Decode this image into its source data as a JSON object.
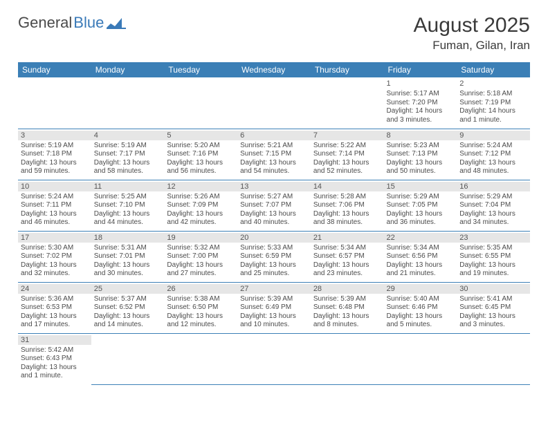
{
  "logo": {
    "part1": "General",
    "part2": "Blue"
  },
  "title": "August 2025",
  "location": "Fuman, Gilan, Iran",
  "colors": {
    "header_bg": "#3b7fb6",
    "header_text": "#ffffff",
    "daynum_bg": "#e6e6e6",
    "text": "#4a4a4a",
    "row_border": "#3b7fb6",
    "page_bg": "#ffffff"
  },
  "fonts": {
    "title_size": 30,
    "location_size": 17,
    "dayheader_size": 12,
    "cell_size": 10
  },
  "day_headers": [
    "Sunday",
    "Monday",
    "Tuesday",
    "Wednesday",
    "Thursday",
    "Friday",
    "Saturday"
  ],
  "weeks": [
    [
      null,
      null,
      null,
      null,
      null,
      {
        "n": "1",
        "sr": "Sunrise: 5:17 AM",
        "ss": "Sunset: 7:20 PM",
        "d1": "Daylight: 14 hours",
        "d2": "and 3 minutes."
      },
      {
        "n": "2",
        "sr": "Sunrise: 5:18 AM",
        "ss": "Sunset: 7:19 PM",
        "d1": "Daylight: 14 hours",
        "d2": "and 1 minute."
      }
    ],
    [
      {
        "n": "3",
        "sr": "Sunrise: 5:19 AM",
        "ss": "Sunset: 7:18 PM",
        "d1": "Daylight: 13 hours",
        "d2": "and 59 minutes."
      },
      {
        "n": "4",
        "sr": "Sunrise: 5:19 AM",
        "ss": "Sunset: 7:17 PM",
        "d1": "Daylight: 13 hours",
        "d2": "and 58 minutes."
      },
      {
        "n": "5",
        "sr": "Sunrise: 5:20 AM",
        "ss": "Sunset: 7:16 PM",
        "d1": "Daylight: 13 hours",
        "d2": "and 56 minutes."
      },
      {
        "n": "6",
        "sr": "Sunrise: 5:21 AM",
        "ss": "Sunset: 7:15 PM",
        "d1": "Daylight: 13 hours",
        "d2": "and 54 minutes."
      },
      {
        "n": "7",
        "sr": "Sunrise: 5:22 AM",
        "ss": "Sunset: 7:14 PM",
        "d1": "Daylight: 13 hours",
        "d2": "and 52 minutes."
      },
      {
        "n": "8",
        "sr": "Sunrise: 5:23 AM",
        "ss": "Sunset: 7:13 PM",
        "d1": "Daylight: 13 hours",
        "d2": "and 50 minutes."
      },
      {
        "n": "9",
        "sr": "Sunrise: 5:24 AM",
        "ss": "Sunset: 7:12 PM",
        "d1": "Daylight: 13 hours",
        "d2": "and 48 minutes."
      }
    ],
    [
      {
        "n": "10",
        "sr": "Sunrise: 5:24 AM",
        "ss": "Sunset: 7:11 PM",
        "d1": "Daylight: 13 hours",
        "d2": "and 46 minutes."
      },
      {
        "n": "11",
        "sr": "Sunrise: 5:25 AM",
        "ss": "Sunset: 7:10 PM",
        "d1": "Daylight: 13 hours",
        "d2": "and 44 minutes."
      },
      {
        "n": "12",
        "sr": "Sunrise: 5:26 AM",
        "ss": "Sunset: 7:09 PM",
        "d1": "Daylight: 13 hours",
        "d2": "and 42 minutes."
      },
      {
        "n": "13",
        "sr": "Sunrise: 5:27 AM",
        "ss": "Sunset: 7:07 PM",
        "d1": "Daylight: 13 hours",
        "d2": "and 40 minutes."
      },
      {
        "n": "14",
        "sr": "Sunrise: 5:28 AM",
        "ss": "Sunset: 7:06 PM",
        "d1": "Daylight: 13 hours",
        "d2": "and 38 minutes."
      },
      {
        "n": "15",
        "sr": "Sunrise: 5:29 AM",
        "ss": "Sunset: 7:05 PM",
        "d1": "Daylight: 13 hours",
        "d2": "and 36 minutes."
      },
      {
        "n": "16",
        "sr": "Sunrise: 5:29 AM",
        "ss": "Sunset: 7:04 PM",
        "d1": "Daylight: 13 hours",
        "d2": "and 34 minutes."
      }
    ],
    [
      {
        "n": "17",
        "sr": "Sunrise: 5:30 AM",
        "ss": "Sunset: 7:02 PM",
        "d1": "Daylight: 13 hours",
        "d2": "and 32 minutes."
      },
      {
        "n": "18",
        "sr": "Sunrise: 5:31 AM",
        "ss": "Sunset: 7:01 PM",
        "d1": "Daylight: 13 hours",
        "d2": "and 30 minutes."
      },
      {
        "n": "19",
        "sr": "Sunrise: 5:32 AM",
        "ss": "Sunset: 7:00 PM",
        "d1": "Daylight: 13 hours",
        "d2": "and 27 minutes."
      },
      {
        "n": "20",
        "sr": "Sunrise: 5:33 AM",
        "ss": "Sunset: 6:59 PM",
        "d1": "Daylight: 13 hours",
        "d2": "and 25 minutes."
      },
      {
        "n": "21",
        "sr": "Sunrise: 5:34 AM",
        "ss": "Sunset: 6:57 PM",
        "d1": "Daylight: 13 hours",
        "d2": "and 23 minutes."
      },
      {
        "n": "22",
        "sr": "Sunrise: 5:34 AM",
        "ss": "Sunset: 6:56 PM",
        "d1": "Daylight: 13 hours",
        "d2": "and 21 minutes."
      },
      {
        "n": "23",
        "sr": "Sunrise: 5:35 AM",
        "ss": "Sunset: 6:55 PM",
        "d1": "Daylight: 13 hours",
        "d2": "and 19 minutes."
      }
    ],
    [
      {
        "n": "24",
        "sr": "Sunrise: 5:36 AM",
        "ss": "Sunset: 6:53 PM",
        "d1": "Daylight: 13 hours",
        "d2": "and 17 minutes."
      },
      {
        "n": "25",
        "sr": "Sunrise: 5:37 AM",
        "ss": "Sunset: 6:52 PM",
        "d1": "Daylight: 13 hours",
        "d2": "and 14 minutes."
      },
      {
        "n": "26",
        "sr": "Sunrise: 5:38 AM",
        "ss": "Sunset: 6:50 PM",
        "d1": "Daylight: 13 hours",
        "d2": "and 12 minutes."
      },
      {
        "n": "27",
        "sr": "Sunrise: 5:39 AM",
        "ss": "Sunset: 6:49 PM",
        "d1": "Daylight: 13 hours",
        "d2": "and 10 minutes."
      },
      {
        "n": "28",
        "sr": "Sunrise: 5:39 AM",
        "ss": "Sunset: 6:48 PM",
        "d1": "Daylight: 13 hours",
        "d2": "and 8 minutes."
      },
      {
        "n": "29",
        "sr": "Sunrise: 5:40 AM",
        "ss": "Sunset: 6:46 PM",
        "d1": "Daylight: 13 hours",
        "d2": "and 5 minutes."
      },
      {
        "n": "30",
        "sr": "Sunrise: 5:41 AM",
        "ss": "Sunset: 6:45 PM",
        "d1": "Daylight: 13 hours",
        "d2": "and 3 minutes."
      }
    ],
    [
      {
        "n": "31",
        "sr": "Sunrise: 5:42 AM",
        "ss": "Sunset: 6:43 PM",
        "d1": "Daylight: 13 hours",
        "d2": "and 1 minute."
      },
      null,
      null,
      null,
      null,
      null,
      null
    ]
  ]
}
